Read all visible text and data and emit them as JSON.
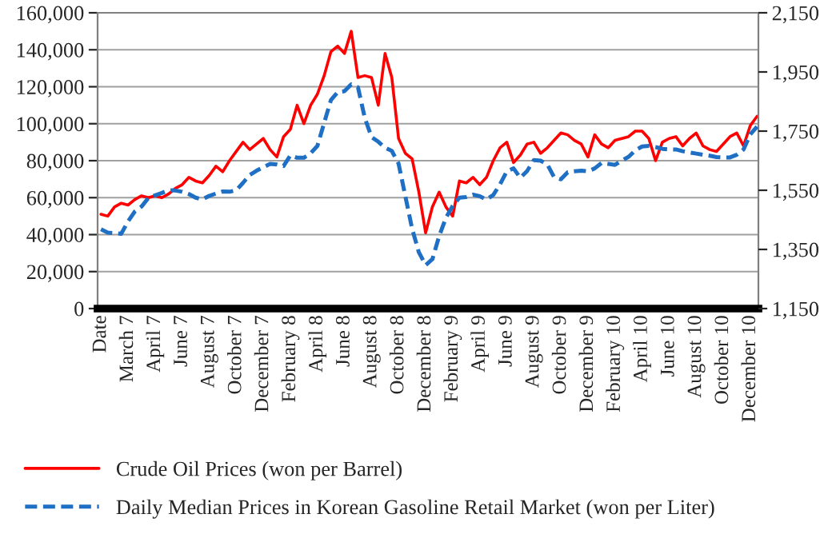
{
  "chart_data": {
    "type": "line",
    "categories": [
      "Date",
      null,
      null,
      null,
      "March 7",
      null,
      null,
      null,
      "April 7",
      null,
      null,
      null,
      "June 7",
      null,
      null,
      null,
      "August 7",
      null,
      null,
      null,
      "October 7",
      null,
      null,
      null,
      "December 7",
      null,
      null,
      null,
      "February 8",
      null,
      null,
      null,
      "April 8",
      null,
      null,
      null,
      "June 8",
      null,
      null,
      null,
      "August 8",
      null,
      null,
      null,
      "October 8",
      null,
      null,
      null,
      "December 8",
      null,
      null,
      null,
      "February 9",
      null,
      null,
      null,
      "April 9",
      null,
      null,
      null,
      "June 9",
      null,
      null,
      null,
      "August 9",
      null,
      null,
      null,
      "October 9",
      null,
      null,
      null,
      "December 9",
      null,
      null,
      null,
      "February 10",
      null,
      null,
      null,
      "April 10",
      null,
      null,
      null,
      "June 10",
      null,
      null,
      null,
      "August 10",
      null,
      null,
      null,
      "October 10",
      null,
      null,
      null,
      "December 10",
      null
    ],
    "ylim": [
      0,
      160000
    ],
    "yticks": [
      {
        "value": 0,
        "label": "0"
      },
      {
        "value": 20000,
        "label": "20,000"
      },
      {
        "value": 40000,
        "label": "40,000"
      },
      {
        "value": 60000,
        "label": "60,000"
      },
      {
        "value": 80000,
        "label": "80,000"
      },
      {
        "value": 100000,
        "label": "100,000"
      },
      {
        "value": 120000,
        "label": "120,000"
      },
      {
        "value": 140000,
        "label": "140,000"
      },
      {
        "value": 160000,
        "label": "160,000"
      }
    ],
    "y2lim": [
      1150,
      2150
    ],
    "y2ticks": [
      {
        "value": 1150,
        "label": "1,150"
      },
      {
        "value": 1350,
        "label": "1,350"
      },
      {
        "value": 1550,
        "label": "1,550"
      },
      {
        "value": 1750,
        "label": "1,750"
      },
      {
        "value": 1950,
        "label": "1,950"
      },
      {
        "value": 2150,
        "label": "2,150"
      }
    ],
    "grid": "y",
    "legend": "bottom",
    "series": [
      {
        "name": "Crude Oil Prices (won per Barrel)",
        "color": "#ff0000",
        "line_style": "solid",
        "values": [
          51000,
          50000,
          55000,
          57000,
          56000,
          59000,
          61000,
          60000,
          61000,
          60000,
          62000,
          65000,
          67000,
          71000,
          69000,
          68000,
          72000,
          77000,
          74000,
          80000,
          85000,
          90000,
          86000,
          89000,
          92000,
          86000,
          82000,
          93000,
          97000,
          110000,
          100000,
          110000,
          116000,
          126000,
          139000,
          142000,
          138000,
          150000,
          125000,
          126000,
          125000,
          110000,
          138000,
          125000,
          92000,
          84000,
          81000,
          63000,
          41000,
          55000,
          63000,
          55000,
          50000,
          69000,
          68000,
          71000,
          67000,
          71000,
          80000,
          87000,
          90000,
          79000,
          83000,
          89000,
          90000,
          84000,
          87000,
          91000,
          95000,
          94000,
          91000,
          89000,
          82000,
          94000,
          89000,
          87000,
          91000,
          92000,
          93000,
          96000,
          96000,
          92000,
          80000,
          90000,
          92000,
          93000,
          88000,
          92000,
          95000,
          88000,
          86000,
          85000,
          89000,
          93000,
          95000,
          88000,
          99000,
          104000
        ]
      },
      {
        "name": "Daily Median Prices in Korean Gasoline Retail Market (won per Liter)",
        "color": "#1f6fc4",
        "line_style": "dashed",
        "axis": "y2",
        "values": [
          1418,
          1407,
          1405,
          1403,
          1445,
          1478,
          1495,
          1524,
          1533,
          1541,
          1550,
          1549,
          1545,
          1537,
          1525,
          1519,
          1531,
          1539,
          1546,
          1545,
          1550,
          1575,
          1602,
          1616,
          1628,
          1639,
          1637,
          1632,
          1668,
          1660,
          1660,
          1675,
          1700,
          1778,
          1855,
          1882,
          1885,
          1908,
          1898,
          1795,
          1730,
          1714,
          1694,
          1683,
          1640,
          1530,
          1420,
          1340,
          1297,
          1317,
          1395,
          1457,
          1497,
          1525,
          1527,
          1535,
          1530,
          1519,
          1534,
          1570,
          1614,
          1624,
          1592,
          1615,
          1652,
          1650,
          1637,
          1594,
          1587,
          1611,
          1614,
          1616,
          1614,
          1624,
          1642,
          1639,
          1636,
          1650,
          1663,
          1685,
          1698,
          1700,
          1696,
          1690,
          1688,
          1688,
          1682,
          1678,
          1674,
          1670,
          1667,
          1662,
          1661,
          1661,
          1670,
          1688,
          1739,
          1765
        ]
      }
    ]
  }
}
